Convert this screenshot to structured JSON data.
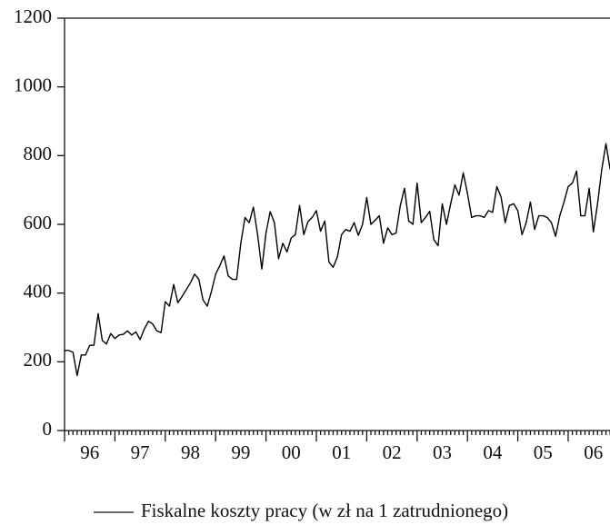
{
  "chart_data": {
    "type": "line",
    "legend_label": "Fiskalne koszty pracy (w zł na 1 zatrudnionego)",
    "color": "#000000",
    "xlim": [
      1996,
      2006.917
    ],
    "xticks": [
      {
        "value": 1996.5,
        "label": "96"
      },
      {
        "value": 1997.5,
        "label": "97"
      },
      {
        "value": 1998.5,
        "label": "98"
      },
      {
        "value": 1999.5,
        "label": "99"
      },
      {
        "value": 2000.5,
        "label": "00"
      },
      {
        "value": 2001.5,
        "label": "01"
      },
      {
        "value": 2002.5,
        "label": "02"
      },
      {
        "value": 2003.5,
        "label": "03"
      },
      {
        "value": 2004.5,
        "label": "04"
      },
      {
        "value": 2005.5,
        "label": "05"
      },
      {
        "value": 2006.5,
        "label": "06"
      }
    ],
    "ylim": [
      0,
      1200
    ],
    "yticks": [
      0,
      200,
      400,
      600,
      800,
      1000,
      1200
    ],
    "x": [
      1996,
      1996.083,
      1996.167,
      1996.25,
      1996.333,
      1996.417,
      1996.5,
      1996.583,
      1996.667,
      1996.75,
      1996.833,
      1996.917,
      1997,
      1997.083,
      1997.167,
      1997.25,
      1997.333,
      1997.417,
      1997.5,
      1997.583,
      1997.667,
      1997.75,
      1997.833,
      1997.917,
      1998,
      1998.083,
      1998.167,
      1998.25,
      1998.333,
      1998.417,
      1998.5,
      1998.583,
      1998.667,
      1998.75,
      1998.833,
      1998.917,
      1999,
      1999.083,
      1999.167,
      1999.25,
      1999.333,
      1999.417,
      1999.5,
      1999.583,
      1999.667,
      1999.75,
      1999.833,
      1999.917,
      2000,
      2000.083,
      2000.167,
      2000.25,
      2000.333,
      2000.417,
      2000.5,
      2000.583,
      2000.667,
      2000.75,
      2000.833,
      2000.917,
      2001,
      2001.083,
      2001.167,
      2001.25,
      2001.333,
      2001.417,
      2001.5,
      2001.583,
      2001.667,
      2001.75,
      2001.833,
      2001.917,
      2002,
      2002.083,
      2002.167,
      2002.25,
      2002.333,
      2002.417,
      2002.5,
      2002.583,
      2002.667,
      2002.75,
      2002.833,
      2002.917,
      2003,
      2003.083,
      2003.167,
      2003.25,
      2003.333,
      2003.417,
      2003.5,
      2003.583,
      2003.667,
      2003.75,
      2003.833,
      2003.917,
      2004,
      2004.083,
      2004.167,
      2004.25,
      2004.333,
      2004.417,
      2004.5,
      2004.583,
      2004.667,
      2004.75,
      2004.833,
      2004.917,
      2005,
      2005.083,
      2005.167,
      2005.25,
      2005.333,
      2005.417,
      2005.5,
      2005.583,
      2005.667,
      2005.75,
      2005.833,
      2005.917,
      2006,
      2006.083,
      2006.167,
      2006.25,
      2006.333,
      2006.417,
      2006.5,
      2006.583,
      2006.667,
      2006.75,
      2006.833
    ],
    "values": [
      233,
      233,
      228,
      160,
      220,
      220,
      248,
      248,
      340,
      262,
      252,
      282,
      268,
      278,
      280,
      290,
      278,
      287,
      265,
      295,
      318,
      310,
      290,
      285,
      375,
      362,
      425,
      372,
      390,
      410,
      430,
      455,
      440,
      380,
      362,
      405,
      455,
      480,
      508,
      450,
      440,
      440,
      545,
      620,
      605,
      650,
      570,
      470,
      575,
      637,
      605,
      500,
      545,
      520,
      560,
      570,
      655,
      570,
      608,
      620,
      640,
      580,
      610,
      490,
      475,
      505,
      570,
      585,
      580,
      605,
      568,
      600,
      678,
      600,
      612,
      625,
      545,
      590,
      570,
      575,
      655,
      705,
      610,
      600,
      720,
      605,
      620,
      638,
      555,
      538,
      660,
      600,
      660,
      715,
      685,
      750,
      690,
      620,
      625,
      625,
      620,
      640,
      635,
      710,
      680,
      605,
      655,
      660,
      640,
      570,
      605,
      665,
      585,
      625,
      625,
      620,
      605,
      565,
      625,
      665,
      710,
      720,
      755,
      625,
      625,
      705,
      578,
      660,
      760,
      835,
      760
    ]
  }
}
